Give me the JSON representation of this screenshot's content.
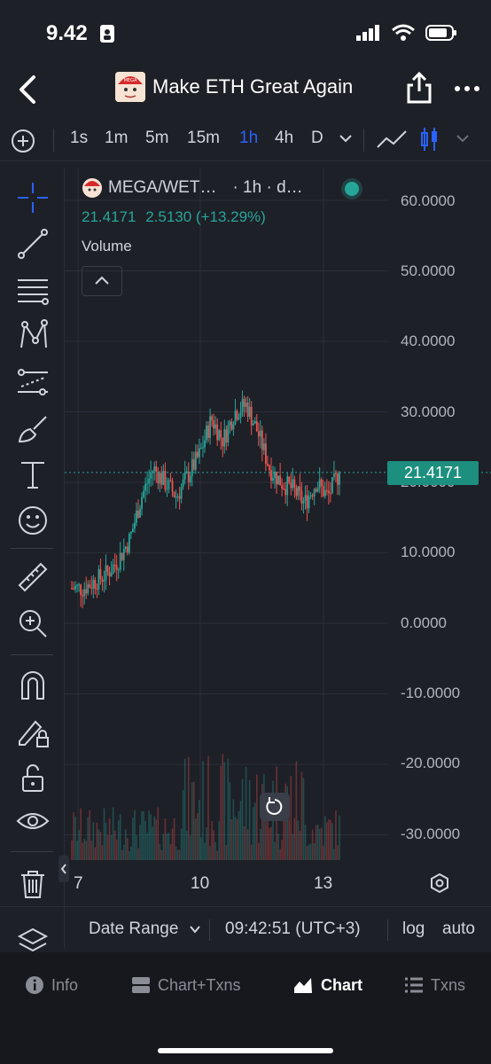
{
  "status": {
    "time": "9.42"
  },
  "header": {
    "title": "Make ETH Great Again",
    "avatar_text": "MEGA"
  },
  "toolbar": {
    "intervals": [
      "1s",
      "1m",
      "5m",
      "15m",
      "1h",
      "4h",
      "D"
    ],
    "active": "1h"
  },
  "legend": {
    "pair": "MEGA/WET…",
    "interval": "· 1h · d…",
    "price": "21.4171",
    "change": "2.5130 (+13.29%)",
    "volume_label": "Volume"
  },
  "price_axis": {
    "ticks": [
      "60.0000",
      "50.0000",
      "40.0000",
      "30.0000",
      "20.0000",
      "10.0000",
      "0.0000",
      "-10.0000",
      "-20.0000",
      "-30.0000"
    ],
    "current": "21.4171"
  },
  "time_axis": {
    "ticks": [
      "7",
      "10",
      "13"
    ]
  },
  "bottom": {
    "date_range": "Date Range",
    "clock": "09:42:51 (UTC+3)",
    "log": "log",
    "auto": "auto"
  },
  "tabs": [
    {
      "label": "Info",
      "icon": "info-icon"
    },
    {
      "label": "Chart+Txns",
      "icon": "split-icon"
    },
    {
      "label": "Chart",
      "icon": "chart-icon"
    },
    {
      "label": "Txns",
      "icon": "list-icon"
    }
  ],
  "colors": {
    "up": "#26a69a",
    "down": "#ef5350",
    "accent": "#2962ff"
  },
  "chart_data": {
    "type": "candlestick",
    "x": [
      "7",
      "10",
      "13"
    ],
    "price_close_anchors": [
      5,
      5,
      6,
      7,
      9,
      12,
      18,
      22,
      20,
      18,
      21,
      24,
      29,
      26,
      30,
      31,
      27,
      22,
      20,
      19,
      17,
      20,
      18,
      21.4
    ],
    "ylim": [
      -35,
      65
    ]
  }
}
